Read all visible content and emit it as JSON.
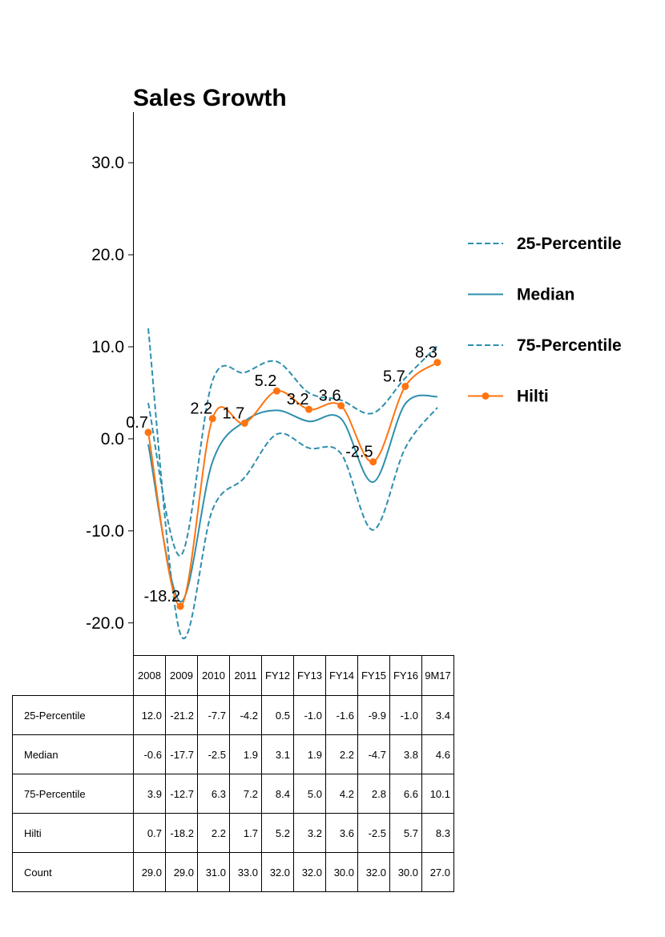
{
  "chart_data": {
    "type": "line",
    "title": "Sales Growth",
    "xlabel": "",
    "ylabel": "",
    "categories": [
      "2008",
      "2009",
      "2010",
      "2011",
      "FY12",
      "FY13",
      "FY14",
      "FY15",
      "FY16",
      "9M17"
    ],
    "ylim": [
      -23.5,
      35.5
    ],
    "yticks": [
      -20.0,
      -10.0,
      0.0,
      10.0,
      20.0,
      30.0
    ],
    "ytick_labels": [
      "-20.0",
      "-10.0",
      "0.0",
      "10.0",
      "20.0",
      "30.0"
    ],
    "grid": false,
    "legend_position": "right",
    "series": [
      {
        "name": "25-Percentile",
        "values": [
          12.0,
          -21.2,
          -7.7,
          -4.2,
          0.5,
          -1.0,
          -1.6,
          -9.9,
          -1.0,
          3.4
        ],
        "color": "#2e8fad",
        "style": "dashed"
      },
      {
        "name": "Median",
        "values": [
          -0.6,
          -17.7,
          -2.5,
          1.9,
          3.1,
          1.9,
          2.2,
          -4.7,
          3.8,
          4.6
        ],
        "color": "#2e8fad",
        "style": "solid"
      },
      {
        "name": "75-Percentile",
        "values": [
          3.9,
          -12.7,
          6.3,
          7.2,
          8.4,
          5.0,
          4.2,
          2.8,
          6.6,
          10.1
        ],
        "color": "#2e8fad",
        "style": "dashed"
      },
      {
        "name": "Hilti",
        "values": [
          0.7,
          -18.2,
          2.2,
          1.7,
          5.2,
          3.2,
          3.6,
          -2.5,
          5.7,
          8.3
        ],
        "color": "#ff7410",
        "style": "solid-markers"
      }
    ],
    "data_labels": [
      "0.7",
      "-18.2",
      "2.2",
      "1.7",
      "5.2",
      "3.2",
      "3.6",
      "-2.5",
      "5.7",
      "8.3"
    ],
    "table": {
      "columns": [
        "2008",
        "2009",
        "2010",
        "2011",
        "FY12",
        "FY13",
        "FY14",
        "FY15",
        "FY16",
        "9M17"
      ],
      "rows": [
        {
          "label": "25-Percentile",
          "cells": [
            "12.0",
            "-21.2",
            "-7.7",
            "-4.2",
            "0.5",
            "-1.0",
            "-1.6",
            "-9.9",
            "-1.0",
            "3.4"
          ]
        },
        {
          "label": "Median",
          "cells": [
            "-0.6",
            "-17.7",
            "-2.5",
            "1.9",
            "3.1",
            "1.9",
            "2.2",
            "-4.7",
            "3.8",
            "4.6"
          ]
        },
        {
          "label": "75-Percentile",
          "cells": [
            "3.9",
            "-12.7",
            "6.3",
            "7.2",
            "8.4",
            "5.0",
            "4.2",
            "2.8",
            "6.6",
            "10.1"
          ]
        },
        {
          "label": "Hilti",
          "cells": [
            "0.7",
            "-18.2",
            "2.2",
            "1.7",
            "5.2",
            "3.2",
            "3.6",
            "-2.5",
            "5.7",
            "8.3"
          ]
        },
        {
          "label": "Count",
          "cells": [
            "29.0",
            "29.0",
            "31.0",
            "33.0",
            "32.0",
            "32.0",
            "30.0",
            "32.0",
            "30.0",
            "27.0"
          ]
        }
      ]
    }
  }
}
